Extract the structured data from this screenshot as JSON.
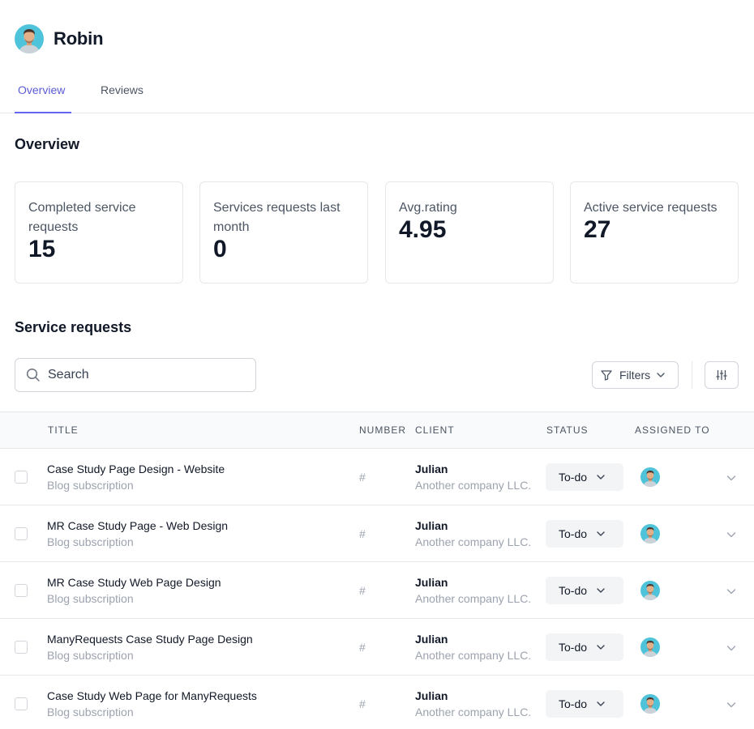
{
  "profile": {
    "name": "Robin",
    "avatar_icon": "person-avatar-icon"
  },
  "tabs": [
    {
      "label": "Overview",
      "active": true
    },
    {
      "label": "Reviews",
      "active": false
    }
  ],
  "overview": {
    "title": "Overview",
    "stats": [
      {
        "label": "Completed service requests",
        "value": "15"
      },
      {
        "label": "Services requests last month",
        "value": "0"
      },
      {
        "label": "Avg.rating",
        "value": "4.95"
      },
      {
        "label": "Active service requests",
        "value": "27"
      }
    ]
  },
  "requests": {
    "title": "Service requests",
    "search": {
      "placeholder": "Search",
      "value": ""
    },
    "filters_label": "Filters",
    "columns": {
      "title": "TITLE",
      "number": "NUMBER",
      "client": "CLIENT",
      "status": "STATUS",
      "assigned": "ASSIGNED TO"
    },
    "rows": [
      {
        "title": "Case Study Page Design - Website",
        "subtitle": "Blog subscription",
        "number": "#",
        "client": "Julian",
        "company": "Another company LLC.",
        "status": "To-do"
      },
      {
        "title": "MR Case Study Page - Web Design",
        "subtitle": "Blog subscription",
        "number": "#",
        "client": "Julian",
        "company": "Another company LLC.",
        "status": "To-do"
      },
      {
        "title": "MR Case Study Web Page Design",
        "subtitle": "Blog subscription",
        "number": "#",
        "client": "Julian",
        "company": "Another company LLC.",
        "status": "To-do"
      },
      {
        "title": "ManyRequests Case Study Page Design",
        "subtitle": "Blog subscription",
        "number": "#",
        "client": "Julian",
        "company": "Another company LLC.",
        "status": "To-do"
      },
      {
        "title": "Case Study Web Page for ManyRequests",
        "subtitle": "Blog subscription",
        "number": "#",
        "client": "Julian",
        "company": "Another company LLC.",
        "status": "To-do"
      }
    ]
  },
  "colors": {
    "accent": "#6366f1",
    "avatar_bg": "#4fc3d9",
    "border": "#e5e7eb",
    "muted_text": "#9ca3af",
    "status_bg": "#f3f4f6"
  }
}
